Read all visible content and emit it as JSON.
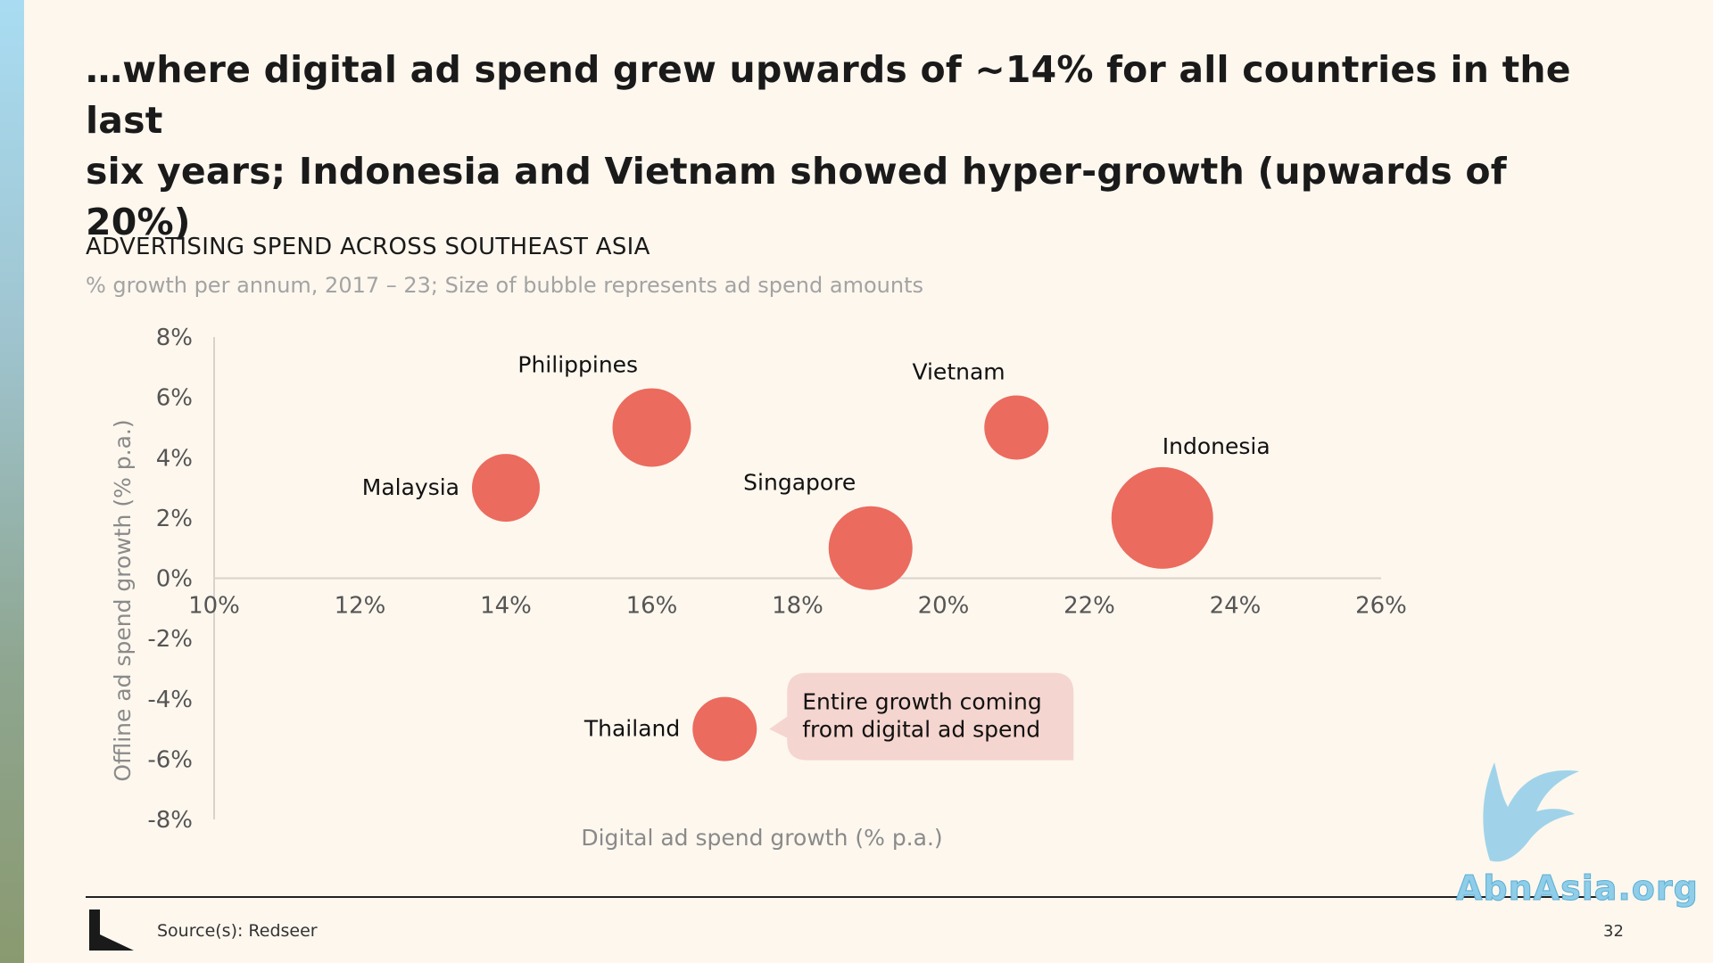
{
  "slide": {
    "headline_line1": "…where digital ad spend grew upwards of ~14% for all countries in the last",
    "headline_line2": "six years; Indonesia and Vietnam showed hyper-growth (upwards of 20%)",
    "source": "Source(s): Redseer",
    "page_number": "32",
    "watermark": "AbnAsia.org"
  },
  "chart_data": {
    "type": "scatter",
    "title": "ADVERTISING SPEND ACROSS SOUTHEAST ASIA",
    "subtitle": "% growth per annum, 2017 – 23; Size of bubble represents ad spend amounts",
    "xlabel": "Digital ad spend growth (% p.a.)",
    "ylabel": "Offline ad spend growth (% p.a.)",
    "xlim": [
      10,
      26
    ],
    "ylim": [
      -8,
      8
    ],
    "x_ticks": [
      "10%",
      "12%",
      "14%",
      "16%",
      "18%",
      "20%",
      "22%",
      "24%",
      "26%"
    ],
    "y_ticks": [
      "8%",
      "6%",
      "4%",
      "2%",
      "0%",
      "-2%",
      "-4%",
      "-6%",
      "-8%"
    ],
    "bubble_color": "#eb6b5e",
    "points": [
      {
        "name": "Malaysia",
        "x": 14.0,
        "y": 3.0,
        "size": 38,
        "label_pos": "left"
      },
      {
        "name": "Philippines",
        "x": 16.0,
        "y": 5.0,
        "size": 44,
        "label_pos": "top-left"
      },
      {
        "name": "Singapore",
        "x": 19.0,
        "y": 1.0,
        "size": 47,
        "label_pos": "top-left"
      },
      {
        "name": "Vietnam",
        "x": 21.0,
        "y": 5.0,
        "size": 36,
        "label_pos": "top-left"
      },
      {
        "name": "Indonesia",
        "x": 23.0,
        "y": 2.0,
        "size": 57,
        "label_pos": "top-right"
      },
      {
        "name": "Thailand",
        "x": 17.0,
        "y": -5.0,
        "size": 36,
        "label_pos": "left"
      }
    ],
    "annotations": [
      {
        "line1": "Entire growth coming",
        "line2": "from digital ad spend",
        "color": "#f5d5cf"
      }
    ]
  }
}
